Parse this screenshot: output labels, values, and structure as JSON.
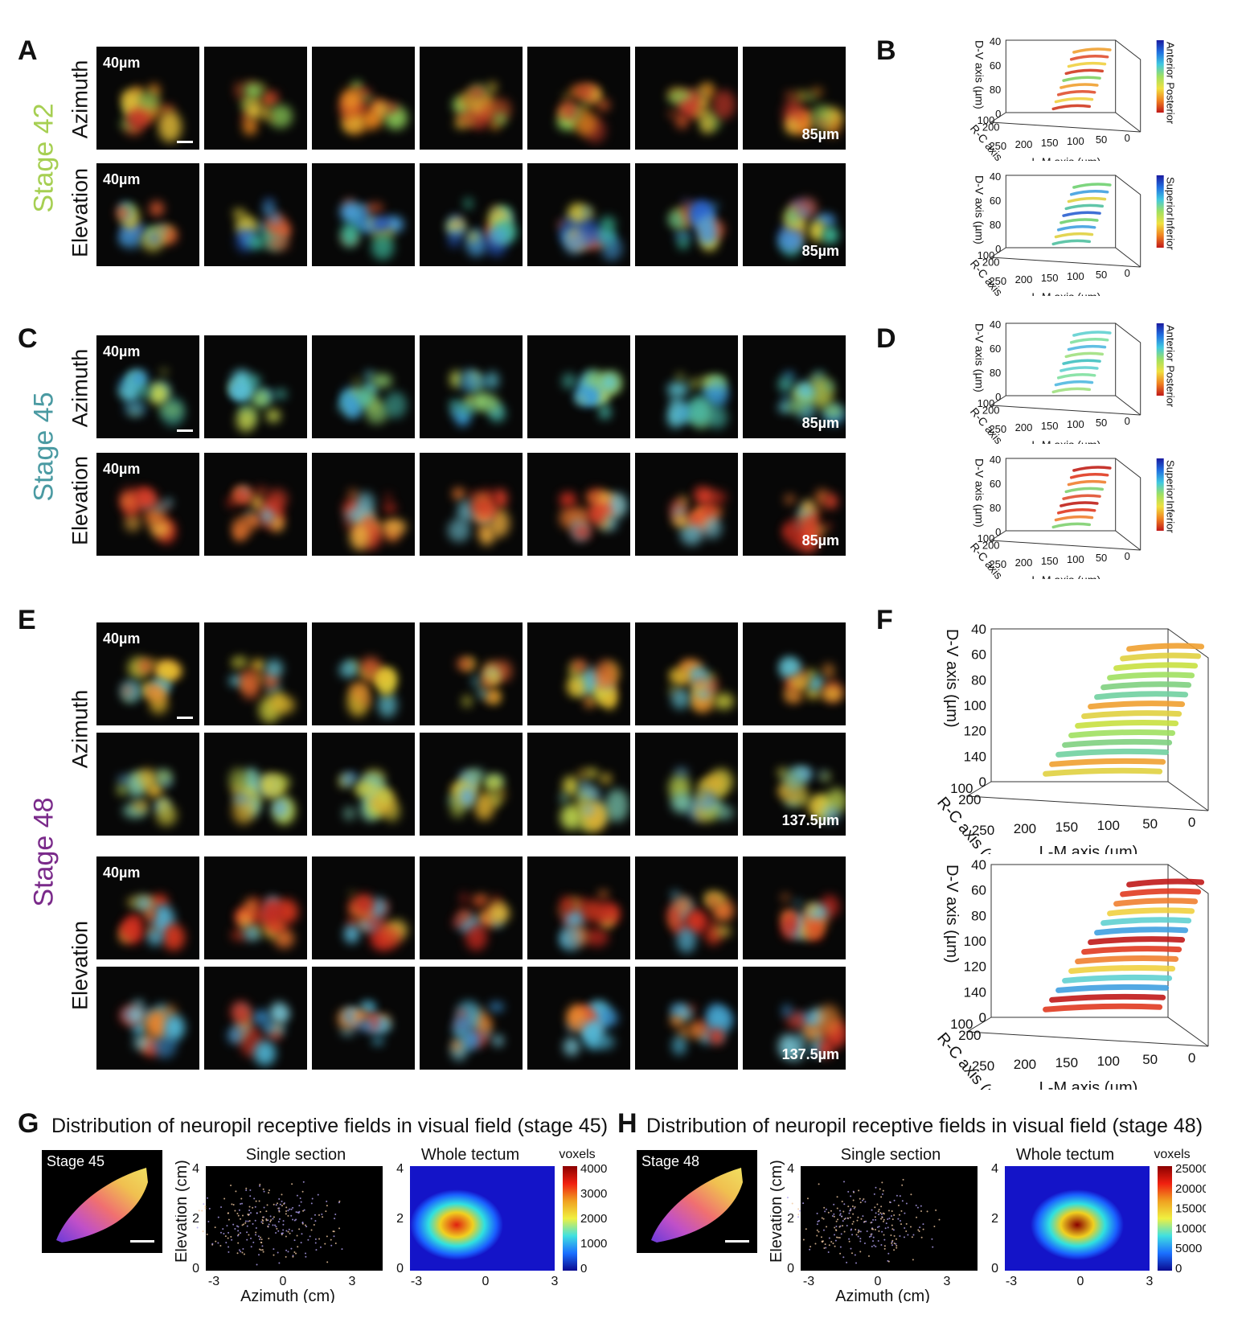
{
  "panels": {
    "A": "A",
    "B": "B",
    "C": "C",
    "D": "D",
    "E": "E",
    "F": "F",
    "G": "G",
    "H": "H"
  },
  "stages": {
    "s42": {
      "label": "Stage 42",
      "color": "#a6cf52"
    },
    "s45": {
      "label": "Stage 45",
      "color": "#4a9aa2"
    },
    "s48": {
      "label": "Stage 48",
      "color": "#7a2a8a"
    }
  },
  "rows": {
    "azimuth": "Azimuth",
    "elevation": "Elevation"
  },
  "depths": {
    "start": "40µm",
    "end_short": "85µm",
    "end_long": "137.5µm"
  },
  "plot3d": {
    "dv_axis": "D-V axis (µm)",
    "rc_axis": "R-C axis (µm)",
    "lm_axis": "L-M axis (µm)",
    "dv_ticks_small": [
      "40",
      "60",
      "80",
      "0"
    ],
    "dv_ticks_large": [
      "40",
      "60",
      "80",
      "100",
      "120",
      "140",
      "0"
    ],
    "rc_ticks": [
      "100",
      "200"
    ],
    "lm_ticks": [
      "250",
      "200",
      "150",
      "100",
      "50",
      "0"
    ],
    "anterior": "Anterior",
    "posterior": "Posterior",
    "superior": "Superior",
    "inferior": "Inferior"
  },
  "G": {
    "title": "Distribution of neuropil receptive fields in visual field (stage 45)",
    "stage_label": "Stage 45",
    "single_section": "Single section",
    "whole_tectum": "Whole tectum",
    "ylabel": "Elevation (cm)",
    "xlabel": "Azimuth (cm)",
    "yticks": [
      "4",
      "2",
      "0"
    ],
    "xticks": [
      "-3",
      "0",
      "3"
    ],
    "colorbar_title": "voxels",
    "colorbar_ticks": [
      "4000",
      "3000",
      "2000",
      "1000",
      "0"
    ]
  },
  "H": {
    "title": "Distribution of neuropil receptive fields in visual field (stage 48)",
    "stage_label": "Stage 48",
    "single_section": "Single section",
    "whole_tectum": "Whole tectum",
    "ylabel": "Elevation (cm)",
    "xlabel": "Azimuth (cm)",
    "yticks": [
      "4",
      "2",
      "0"
    ],
    "xticks": [
      "-3",
      "0",
      "3"
    ],
    "colorbar_title": "voxels",
    "colorbar_ticks": [
      "25000",
      "20000",
      "15000",
      "10000",
      "5000",
      "0"
    ]
  }
}
